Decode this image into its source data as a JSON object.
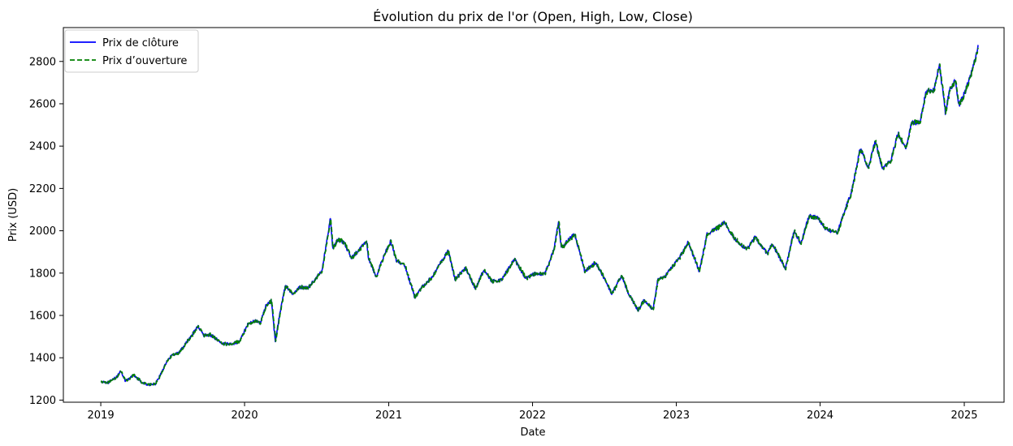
{
  "chart_data": {
    "type": "line",
    "title": "Évolution du prix de l'or (Open, High, Low, Close)",
    "xlabel": "Date",
    "ylabel": "Prix (USD)",
    "xlim": [
      "2018-09-28",
      "2025-04-12"
    ],
    "ylim": [
      1190,
      2960
    ],
    "x_ticks": [
      "2019-01-01",
      "2020-01-01",
      "2021-01-01",
      "2022-01-01",
      "2023-01-01",
      "2024-01-01",
      "2025-01-01"
    ],
    "x_tick_labels": [
      "2019",
      "2020",
      "2021",
      "2022",
      "2023",
      "2024",
      "2025"
    ],
    "y_ticks": [
      1200,
      1400,
      1600,
      1800,
      2000,
      2200,
      2400,
      2600,
      2800
    ],
    "grid": false,
    "legend": "top-left",
    "colors": {
      "close": "#0000ff",
      "open": "#008000",
      "high_low_band": "#b0b0b0"
    },
    "series": [
      {
        "name": "Prix de clôture",
        "style": "solid",
        "points": [
          [
            "2019-01-02",
            1284
          ],
          [
            "2019-01-20",
            1283
          ],
          [
            "2019-02-12",
            1312
          ],
          [
            "2019-02-20",
            1340
          ],
          [
            "2019-03-05",
            1290
          ],
          [
            "2019-03-25",
            1318
          ],
          [
            "2019-04-15",
            1285
          ],
          [
            "2019-05-02",
            1271
          ],
          [
            "2019-05-20",
            1278
          ],
          [
            "2019-06-05",
            1330
          ],
          [
            "2019-06-20",
            1393
          ],
          [
            "2019-07-01",
            1410
          ],
          [
            "2019-07-20",
            1425
          ],
          [
            "2019-08-05",
            1470
          ],
          [
            "2019-08-20",
            1505
          ],
          [
            "2019-09-04",
            1550
          ],
          [
            "2019-09-20",
            1505
          ],
          [
            "2019-10-05",
            1510
          ],
          [
            "2019-10-20",
            1490
          ],
          [
            "2019-11-10",
            1465
          ],
          [
            "2019-12-01",
            1465
          ],
          [
            "2019-12-20",
            1480
          ],
          [
            "2020-01-08",
            1555
          ],
          [
            "2020-01-25",
            1575
          ],
          [
            "2020-02-10",
            1565
          ],
          [
            "2020-02-24",
            1645
          ],
          [
            "2020-03-09",
            1670
          ],
          [
            "2020-03-19",
            1480
          ],
          [
            "2020-04-01",
            1625
          ],
          [
            "2020-04-14",
            1740
          ],
          [
            "2020-05-01",
            1700
          ],
          [
            "2020-05-20",
            1735
          ],
          [
            "2020-06-10",
            1730
          ],
          [
            "2020-06-30",
            1775
          ],
          [
            "2020-07-15",
            1810
          ],
          [
            "2020-07-28",
            1950
          ],
          [
            "2020-08-06",
            2060
          ],
          [
            "2020-08-12",
            1915
          ],
          [
            "2020-08-25",
            1960
          ],
          [
            "2020-09-10",
            1945
          ],
          [
            "2020-09-28",
            1870
          ],
          [
            "2020-10-15",
            1905
          ],
          [
            "2020-11-06",
            1950
          ],
          [
            "2020-11-10",
            1875
          ],
          [
            "2020-11-30",
            1780
          ],
          [
            "2020-12-20",
            1885
          ],
          [
            "2021-01-06",
            1950
          ],
          [
            "2021-01-20",
            1860
          ],
          [
            "2021-02-10",
            1840
          ],
          [
            "2021-03-08",
            1685
          ],
          [
            "2021-03-25",
            1730
          ],
          [
            "2021-04-20",
            1780
          ],
          [
            "2021-05-10",
            1840
          ],
          [
            "2021-06-01",
            1905
          ],
          [
            "2021-06-18",
            1770
          ],
          [
            "2021-07-15",
            1825
          ],
          [
            "2021-08-09",
            1725
          ],
          [
            "2021-08-30",
            1815
          ],
          [
            "2021-09-20",
            1760
          ],
          [
            "2021-10-15",
            1770
          ],
          [
            "2021-11-16",
            1865
          ],
          [
            "2021-12-15",
            1775
          ],
          [
            "2022-01-10",
            1800
          ],
          [
            "2022-02-01",
            1795
          ],
          [
            "2022-02-24",
            1910
          ],
          [
            "2022-03-08",
            2045
          ],
          [
            "2022-03-15",
            1920
          ],
          [
            "2022-04-18",
            1985
          ],
          [
            "2022-05-13",
            1810
          ],
          [
            "2022-06-10",
            1850
          ],
          [
            "2022-07-05",
            1765
          ],
          [
            "2022-07-21",
            1700
          ],
          [
            "2022-08-15",
            1790
          ],
          [
            "2022-09-01",
            1705
          ],
          [
            "2022-09-26",
            1625
          ],
          [
            "2022-10-10",
            1670
          ],
          [
            "2022-11-03",
            1630
          ],
          [
            "2022-11-15",
            1770
          ],
          [
            "2022-12-05",
            1790
          ],
          [
            "2023-01-10",
            1875
          ],
          [
            "2023-01-31",
            1945
          ],
          [
            "2023-02-28",
            1810
          ],
          [
            "2023-03-20",
            1985
          ],
          [
            "2023-04-13",
            2010
          ],
          [
            "2023-05-03",
            2040
          ],
          [
            "2023-05-30",
            1960
          ],
          [
            "2023-06-29",
            1910
          ],
          [
            "2023-07-20",
            1970
          ],
          [
            "2023-08-21",
            1890
          ],
          [
            "2023-09-01",
            1940
          ],
          [
            "2023-10-05",
            1820
          ],
          [
            "2023-10-27",
            2000
          ],
          [
            "2023-11-13",
            1940
          ],
          [
            "2023-12-04",
            2070
          ],
          [
            "2023-12-26",
            2060
          ],
          [
            "2024-01-17",
            2005
          ],
          [
            "2024-02-14",
            1990
          ],
          [
            "2024-03-01",
            2080
          ],
          [
            "2024-03-20",
            2180
          ],
          [
            "2024-04-12",
            2390
          ],
          [
            "2024-05-02",
            2300
          ],
          [
            "2024-05-20",
            2425
          ],
          [
            "2024-06-07",
            2295
          ],
          [
            "2024-06-28",
            2330
          ],
          [
            "2024-07-17",
            2460
          ],
          [
            "2024-08-06",
            2385
          ],
          [
            "2024-08-20",
            2510
          ],
          [
            "2024-09-10",
            2510
          ],
          [
            "2024-09-26",
            2660
          ],
          [
            "2024-10-15",
            2660
          ],
          [
            "2024-10-30",
            2785
          ],
          [
            "2024-11-14",
            2560
          ],
          [
            "2024-11-25",
            2665
          ],
          [
            "2024-12-10",
            2715
          ],
          [
            "2024-12-18",
            2590
          ],
          [
            "2025-01-02",
            2650
          ],
          [
            "2025-01-20",
            2750
          ],
          [
            "2025-02-05",
            2865
          ]
        ]
      },
      {
        "name": "Prix d’ouverture",
        "style": "dashed"
      }
    ]
  }
}
